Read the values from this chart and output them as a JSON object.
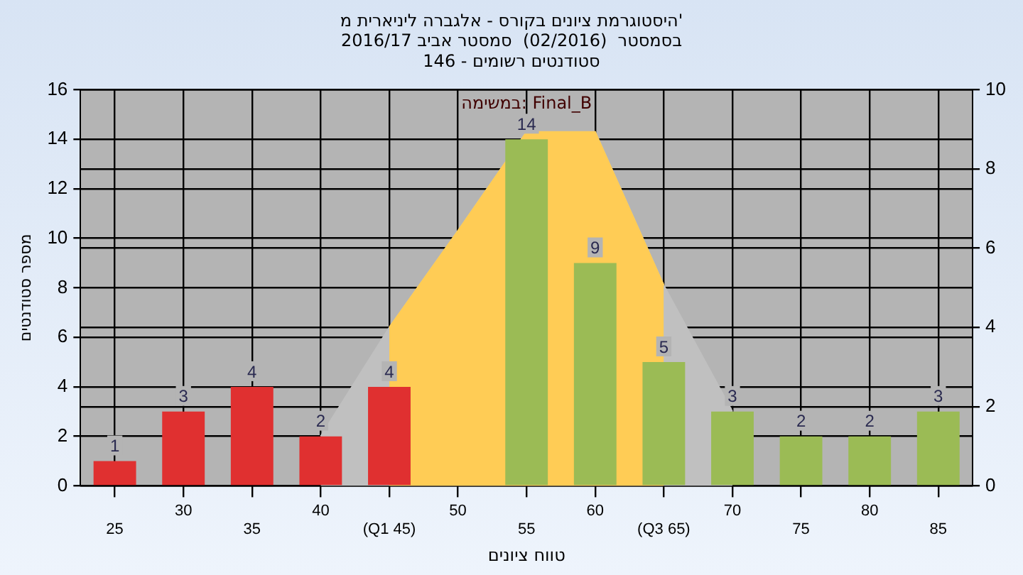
{
  "chart_data": {
    "type": "bar",
    "title": "היסטוגרמת ציונים בקורס - אלגברה ליניארית מ'",
    "subtitle": "בסמסטר  (02/2016)  סמסטר אביב 2016/17\nסטודנטים רשומים - 146",
    "xlabel": "טווח ציונים",
    "ylabel": "מספר סטודנטים",
    "annotations": [
      "במשימה: Final_B"
    ],
    "categories": [
      "25",
      "30",
      "35",
      "40",
      "(Q1 45)",
      "50",
      "55",
      "60",
      "(Q3 65)",
      "70",
      "75",
      "80",
      "85"
    ],
    "series": [
      {
        "values": [
          1,
          3,
          4,
          2,
          4,
          0,
          14,
          9,
          5,
          3,
          2,
          2,
          3
        ],
        "colors": [
          "#e03030",
          "#e03030",
          "#e03030",
          "#e03030",
          "#e03030",
          "#e03030",
          "#9bbb55",
          "#9bbb55",
          "#9bbb55",
          "#9bbb55",
          "#9bbb55",
          "#9bbb55",
          "#9bbb55"
        ],
        "value_labels": [
          "1",
          "3",
          "4",
          "2",
          "4",
          null,
          "14",
          "9",
          "5",
          "3",
          "2",
          "2",
          "3"
        ]
      },
      {
        "type": "area",
        "color": "#c0c0c0",
        "values": [
          null,
          null,
          null,
          2,
          6.4,
          10.3,
          14.3,
          14.3,
          8.1,
          3,
          null,
          null,
          null
        ]
      },
      {
        "type": "area",
        "color": "#ffcc55",
        "values": [
          null,
          null,
          null,
          null,
          6.4,
          10.3,
          14.3,
          14.3,
          8.1,
          null,
          null,
          null,
          null
        ]
      }
    ],
    "ylim": [
      0,
      16
    ],
    "yticks": [
      0,
      2,
      4,
      6,
      8,
      10,
      12,
      14,
      16
    ],
    "y2lim": [
      0,
      10
    ],
    "y2ticks": [
      0,
      2,
      4,
      6,
      8,
      10
    ],
    "grid": true,
    "legend": false
  }
}
